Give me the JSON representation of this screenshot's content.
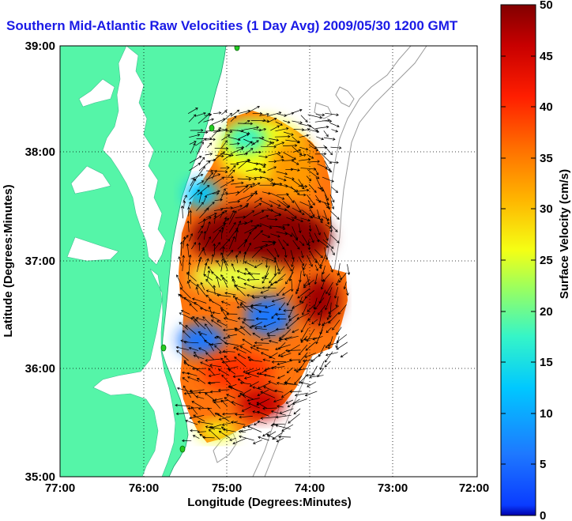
{
  "title": "Southern Mid-Atlantic Raw Velocities (1 Day Avg) 2009/05/30 1200 GMT",
  "map": {
    "xlabel": "Longitude (Degrees:Minutes)",
    "ylabel": "Latitude (Degrees:Minutes)",
    "lon_ticks": [
      "77:00",
      "76:00",
      "75:00",
      "74:00",
      "73:00",
      "72:00"
    ],
    "lat_ticks": [
      "39:00",
      "38:00",
      "37:00",
      "36:00",
      "35:00"
    ],
    "lon_range": [
      -77,
      -72
    ],
    "lat_range": [
      35,
      39
    ],
    "grid": true,
    "land_color": "#55f5a8",
    "water_color": "#ffffff"
  },
  "colorbar": {
    "label": "Surface Velocity (cm/s)",
    "ticks": [
      "50",
      "45",
      "40",
      "35",
      "30",
      "25",
      "20",
      "15",
      "10",
      "5",
      "0"
    ],
    "range": [
      0,
      50
    ],
    "colormap": "jet"
  },
  "colors": {
    "title": "#1a1ae6",
    "station_marker": "#22cc22"
  }
}
